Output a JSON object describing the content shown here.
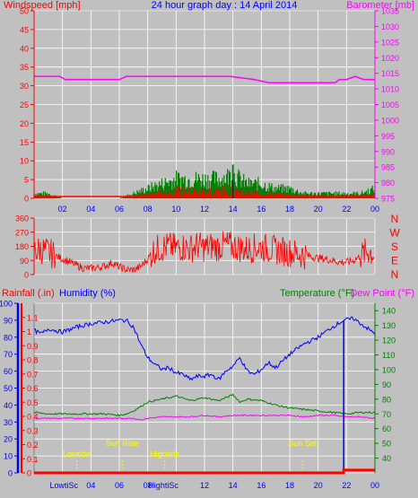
{
  "header": {
    "title": "24 hour graph day : 14 April 2014",
    "left_label": "Windspeed [mph]",
    "right_label": "Barometer [mb]"
  },
  "colors": {
    "background": "#c0c0c0",
    "grid": "#ffffff",
    "wind": "#ff0000",
    "gust": "#008000",
    "avg": "#0000ff",
    "barometer": "#ff00ff",
    "direction": "#ff0000",
    "humidity": "#0000ff",
    "temperature": "#008000",
    "dewpoint": "#ff00ff",
    "rainfall": "#ff0000",
    "title": "#0000ff",
    "annotation": "#ffff00"
  },
  "time_ticks": [
    "02",
    "04",
    "06",
    "08",
    "10",
    "12",
    "14",
    "16",
    "18",
    "20",
    "22",
    "00"
  ],
  "panel3_labels": {
    "rainfall": "Rainfall (.in)",
    "humidity": "Humidity (%)",
    "temperature": "Temperature (°F)",
    "dewpoint": "Dew Point (°F)"
  },
  "compass": [
    "N",
    "W",
    "S",
    "E",
    "N"
  ],
  "annotations": [
    {
      "label": "Lowtide",
      "hour": 3.0
    },
    {
      "label": "Sun Rise",
      "hour": 6.2
    },
    {
      "label": "Hightide",
      "hour": 9.2
    },
    {
      "label": "Sun Set",
      "hour": 18.9
    }
  ],
  "bottom_labels": [
    {
      "label": "LowtiSc",
      "hour": 2.1
    },
    {
      "label": "HightiSc",
      "hour": 9.1
    }
  ],
  "chart_data": [
    {
      "type": "area",
      "name": "wind_barometer",
      "x_unit": "hour",
      "xlim": [
        0,
        24
      ],
      "ylim_left": [
        0,
        50
      ],
      "yticks_left": [
        0,
        5,
        10,
        15,
        20,
        25,
        30,
        35,
        40,
        45,
        50
      ],
      "ylim_right": [
        975,
        1035
      ],
      "yticks_right": [
        975,
        980,
        985,
        990,
        995,
        1000,
        1005,
        1010,
        1015,
        1020,
        1025,
        1030,
        1035
      ],
      "series": [
        {
          "name": "Windspeed [mph]",
          "axis": "left",
          "x": [
            0,
            1,
            2,
            3,
            4,
            5,
            6,
            7,
            8,
            9,
            10,
            11,
            12,
            13,
            14,
            15,
            16,
            17,
            18,
            19,
            20,
            21,
            22,
            23,
            24
          ],
          "values": [
            1,
            1,
            0,
            0,
            0,
            0,
            0,
            1,
            2,
            3,
            4,
            4,
            4,
            4,
            5,
            3,
            3,
            2,
            2,
            1,
            1,
            1,
            1,
            1,
            2
          ]
        },
        {
          "name": "Barometer [mb]",
          "axis": "right",
          "x": [
            0,
            1.8,
            2.2,
            6,
            6.5,
            9.8,
            12.8,
            13.8,
            15.5,
            16.5,
            19,
            21.2,
            21.5,
            22,
            22.6,
            23.2,
            24
          ],
          "values": [
            1014,
            1014,
            1013,
            1013,
            1014,
            1014,
            1014,
            1014,
            1013,
            1012,
            1012,
            1012,
            1013,
            1013,
            1014,
            1013,
            1013
          ]
        }
      ]
    },
    {
      "type": "scatter",
      "name": "wind_direction",
      "x_unit": "hour",
      "xlim": [
        0,
        24
      ],
      "ylim": [
        0,
        360
      ],
      "yticks": [
        0,
        90,
        180,
        270,
        360
      ],
      "x": [
        0,
        0.5,
        1,
        1.5,
        2,
        2.5,
        3,
        3.5,
        4,
        4.5,
        5,
        5.5,
        6,
        6.5,
        7,
        7.5,
        8,
        8.5,
        9,
        9.5,
        10,
        10.5,
        11,
        11.5,
        12,
        12.5,
        13,
        13.5,
        14,
        14.5,
        15,
        15.5,
        16,
        16.5,
        17,
        17.5,
        18,
        18.5,
        19,
        19.5,
        20,
        20.5,
        21,
        21.5,
        22,
        22.5,
        23,
        23.5,
        24
      ],
      "values": [
        150,
        160,
        140,
        120,
        100,
        80,
        60,
        40,
        40,
        45,
        55,
        75,
        50,
        30,
        30,
        50,
        100,
        160,
        170,
        180,
        170,
        175,
        165,
        185,
        170,
        180,
        175,
        190,
        180,
        170,
        160,
        170,
        175,
        165,
        155,
        150,
        140,
        135,
        125,
        115,
        105,
        100,
        90,
        80,
        80,
        90,
        120,
        150,
        130
      ]
    },
    {
      "type": "line",
      "name": "rain_humidity_temp",
      "x_unit": "hour",
      "xlim": [
        0,
        24
      ],
      "ylim_rain": [
        0,
        1.2
      ],
      "yticks_rain": [
        0,
        0.1,
        0.2,
        0.3,
        0.4,
        0.5,
        0.6,
        0.7,
        0.8,
        0.9,
        1,
        1.1
      ],
      "ylim_humidity": [
        0,
        100
      ],
      "yticks_humidity": [
        0,
        10,
        20,
        30,
        40,
        50,
        60,
        70,
        80,
        90,
        100
      ],
      "ylim_temp": [
        30,
        145
      ],
      "yticks_temp": [
        40,
        50,
        60,
        70,
        80,
        90,
        100,
        110,
        120,
        130,
        140
      ],
      "series": [
        {
          "name": "Humidity (%)",
          "axis": "humidity",
          "x": [
            0,
            0.5,
            1,
            2,
            3,
            4,
            5,
            6,
            6.5,
            7,
            7.5,
            8,
            8.5,
            9,
            9.5,
            10,
            10.5,
            11,
            11.5,
            12,
            12.5,
            13,
            13.5,
            14,
            14.5,
            15,
            15.5,
            16,
            16.5,
            17,
            18,
            19,
            20,
            21,
            21.8,
            22.5,
            23,
            23.5,
            24
          ],
          "values": [
            84,
            82,
            85,
            83,
            86,
            88,
            89,
            90,
            90,
            86,
            76,
            68,
            64,
            61,
            62,
            59,
            58,
            55,
            57,
            57,
            58,
            55,
            60,
            63,
            68,
            60,
            58,
            61,
            65,
            62,
            70,
            76,
            80,
            86,
            90,
            91,
            88,
            85,
            82
          ]
        },
        {
          "name": "Temperature (°F)",
          "axis": "temp",
          "x": [
            0,
            1,
            2,
            3,
            4,
            5,
            6,
            6.5,
            7,
            7.5,
            8,
            9,
            10,
            11,
            12,
            13,
            14,
            14.5,
            15,
            16,
            17,
            18,
            19,
            20,
            21,
            22,
            23,
            24
          ],
          "values": [
            71,
            70,
            70,
            70,
            70,
            70,
            69,
            70,
            72,
            75,
            78,
            80,
            82,
            79,
            81,
            79,
            83,
            78,
            80,
            79,
            76,
            74,
            73,
            72,
            71,
            70,
            71,
            71
          ]
        },
        {
          "name": "Dew Point (°F)",
          "axis": "temp",
          "x": [
            0,
            1,
            2,
            3,
            4,
            5,
            6,
            6.5,
            7,
            7.5,
            8,
            9,
            10,
            11,
            12,
            13,
            14,
            15,
            16,
            17,
            18,
            19,
            20,
            21,
            22,
            23,
            24
          ],
          "values": [
            67,
            67,
            67,
            67,
            67,
            67,
            67,
            67,
            67,
            66,
            67,
            68,
            68,
            68,
            69,
            68,
            69,
            69,
            69,
            69,
            69,
            68,
            69,
            69,
            68,
            68,
            67
          ]
        },
        {
          "name": "Rainfall (.in)",
          "axis": "rain",
          "x": [
            0,
            21.8,
            21.8,
            24
          ],
          "values": [
            0,
            0,
            0.02,
            0.02
          ]
        }
      ],
      "spike": {
        "hour": 21.8,
        "humidity_from": 0,
        "humidity_to": 90
      }
    }
  ]
}
